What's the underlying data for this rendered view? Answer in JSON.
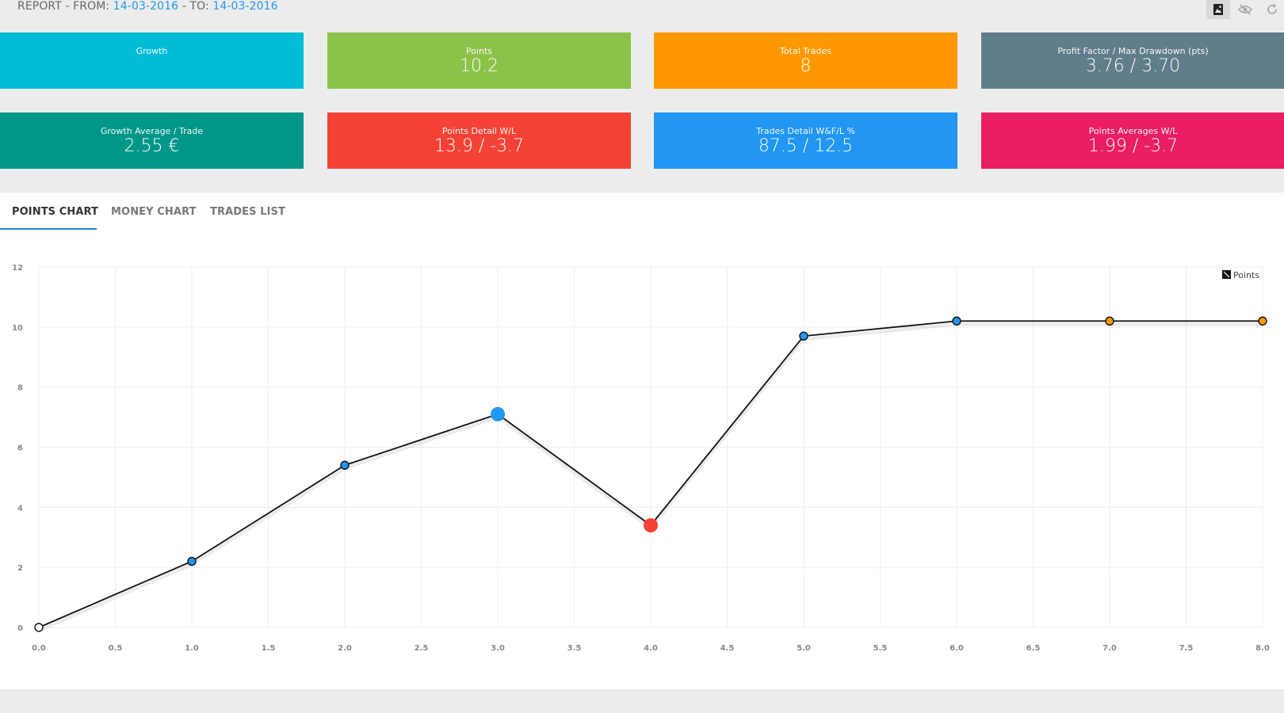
{
  "header": {
    "report_prefix": "REPORT - FROM: ",
    "from_date": "14-03-2016",
    "to_sep": " - TO: ",
    "to_date": "14-03-2016",
    "toolbar": [
      {
        "icon": "image-icon",
        "active": true
      },
      {
        "icon": "eye-off-icon",
        "active": false
      },
      {
        "icon": "refresh-icon",
        "active": false
      }
    ]
  },
  "cards": [
    {
      "label": "Growth",
      "value": "",
      "color": "#00bcd4"
    },
    {
      "label": "Points",
      "value": "10.2",
      "color": "#8bc34a"
    },
    {
      "label": "Total Trades",
      "value": "8",
      "color": "#ff9800"
    },
    {
      "label": "Profit Factor / Max Drawdown (pts)",
      "value": "3.76 / 3.70",
      "color": "#607d8b"
    },
    {
      "label": "Growth Average / Trade",
      "value": "2.55 €",
      "color": "#009688"
    },
    {
      "label": "Points Detail W/L",
      "value": "13.9 / -3.7",
      "color": "#f44336"
    },
    {
      "label": "Trades Detail W&F/L %",
      "value": "87.5 / 12.5",
      "color": "#2196f3"
    },
    {
      "label": "Points Averages W/L",
      "value": "1.99 / -3.7",
      "color": "#e91e63"
    }
  ],
  "tabs": [
    {
      "label": "POINTS CHART",
      "active": true
    },
    {
      "label": "MONEY CHART",
      "active": false
    },
    {
      "label": "TRADES LIST",
      "active": false
    }
  ],
  "chart_data": {
    "type": "line",
    "title": "",
    "xlabel": "",
    "ylabel": "",
    "xlim": [
      0,
      8
    ],
    "ylim": [
      0,
      12
    ],
    "x_ticks": [
      "0.0",
      "0.5",
      "1.0",
      "1.5",
      "2.0",
      "2.5",
      "3.0",
      "3.5",
      "4.0",
      "4.5",
      "5.0",
      "5.5",
      "6.0",
      "6.5",
      "7.0",
      "7.5",
      "8.0"
    ],
    "y_ticks": [
      "0",
      "2",
      "4",
      "6",
      "8",
      "10",
      "12"
    ],
    "grid": true,
    "legend_position": "top-right",
    "series": [
      {
        "name": "Points",
        "color": "#111111",
        "points": [
          {
            "x": 0,
            "y": 0.0,
            "marker": "#ffffff",
            "big": false
          },
          {
            "x": 1,
            "y": 2.2,
            "marker": "#2196f3",
            "big": false
          },
          {
            "x": 2,
            "y": 5.4,
            "marker": "#2196f3",
            "big": false
          },
          {
            "x": 3,
            "y": 7.1,
            "marker": "#2196f3",
            "big": true
          },
          {
            "x": 4,
            "y": 3.4,
            "marker": "#f44336",
            "big": true
          },
          {
            "x": 5,
            "y": 9.7,
            "marker": "#2196f3",
            "big": false
          },
          {
            "x": 6,
            "y": 10.2,
            "marker": "#2196f3",
            "big": false
          },
          {
            "x": 7,
            "y": 10.2,
            "marker": "#ff9800",
            "big": false
          },
          {
            "x": 8,
            "y": 10.2,
            "marker": "#ff9800",
            "big": false
          }
        ]
      }
    ]
  }
}
